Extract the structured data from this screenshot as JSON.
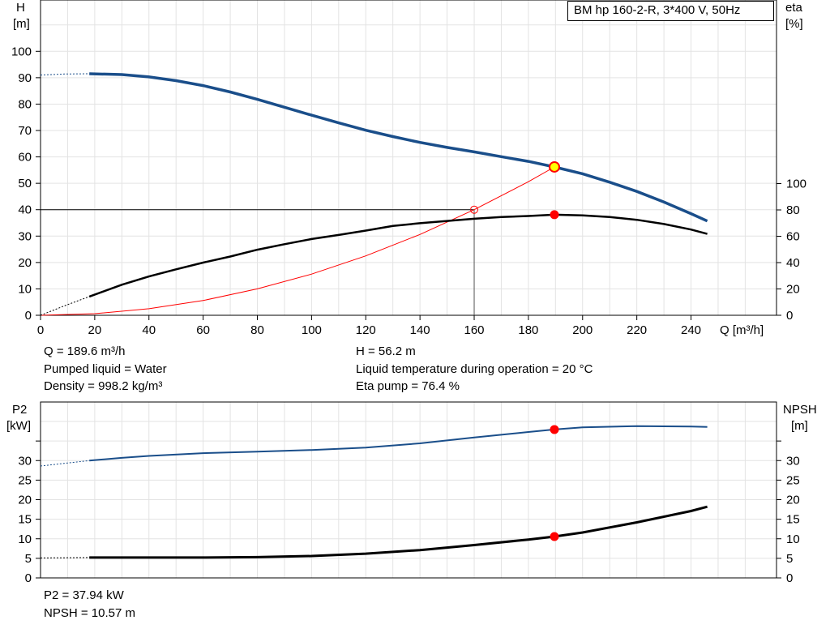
{
  "model_label": "BM hp 160-2-R, 3*400 V, 50Hz",
  "info": {
    "q": "Q = 189.6 m³/h",
    "h": "H = 56.2 m",
    "liquid": "Pumped liquid = Water",
    "temp": "Liquid temperature during operation = 20 °C",
    "density": "Density = 998.2 kg/m³",
    "eta": "Eta pump = 76.4 %",
    "p2": "P2 = 37.94 kW",
    "npsh": "NPSH = 10.57 m"
  },
  "colors": {
    "head_curve": "#1a4e8a",
    "eta_curve": "#000000",
    "system_curve": "#ff0000",
    "p2_curve": "#1a4e8a",
    "npsh_curve": "#000000",
    "duty_point": "#ff0000",
    "duty_point_head": "#ffff00"
  },
  "chart_data": [
    {
      "type": "line",
      "name": "pump-performance",
      "xlabel": "Q [m³/h]",
      "ylabel_left": [
        "H",
        "[m]"
      ],
      "ylabel_right": [
        "eta",
        "[%]"
      ],
      "xlim": [
        0,
        260
      ],
      "xticks": [
        0,
        20,
        40,
        60,
        80,
        100,
        120,
        140,
        160,
        180,
        200,
        220,
        240
      ],
      "ylim_left": [
        0,
        110
      ],
      "yticks_left": [
        0,
        10,
        20,
        30,
        40,
        50,
        60,
        70,
        80,
        90,
        100
      ],
      "ylim_right": [
        0,
        110
      ],
      "yticks_right": [
        0,
        20,
        40,
        60,
        80,
        100
      ],
      "grid": true,
      "series": [
        {
          "key": "head",
          "axis": "left",
          "x": [
            18,
            30,
            40,
            50,
            60,
            70,
            80,
            90,
            100,
            110,
            120,
            130,
            140,
            150,
            160,
            170,
            180,
            189.6,
            200,
            210,
            220,
            230,
            240,
            246
          ],
          "y": [
            91.5,
            91.2,
            90.3,
            88.9,
            87.0,
            84.6,
            81.8,
            78.8,
            75.8,
            72.9,
            70.1,
            67.7,
            65.5,
            63.6,
            61.9,
            60.1,
            58.3,
            56.2,
            53.6,
            50.4,
            46.9,
            42.9,
            38.5,
            35.7
          ],
          "extrapolated": {
            "x": [
              0,
              9,
              18
            ],
            "y": [
              91.0,
              91.4,
              91.5
            ]
          }
        },
        {
          "key": "eta",
          "axis": "right",
          "x": [
            18,
            30,
            40,
            50,
            60,
            70,
            80,
            90,
            100,
            110,
            120,
            130,
            140,
            150,
            160,
            170,
            180,
            189.6,
            200,
            210,
            220,
            230,
            240,
            246
          ],
          "y": [
            14.2,
            23.2,
            29.5,
            34.9,
            40.0,
            44.6,
            49.8,
            54.0,
            57.9,
            61.0,
            64.3,
            67.8,
            69.9,
            71.6,
            73.3,
            74.6,
            75.4,
            76.4,
            75.9,
            74.6,
            72.5,
            69.3,
            65.1,
            61.8
          ],
          "extrapolated": {
            "x": [
              0,
              9,
              18
            ],
            "y": [
              0,
              7.3,
              14.2
            ]
          }
        },
        {
          "key": "system",
          "axis": "left",
          "x": [
            0,
            20,
            40,
            60,
            80,
            100,
            120,
            140,
            160,
            180,
            189.6
          ],
          "y": [
            0,
            0.6,
            2.5,
            5.6,
            10.0,
            15.6,
            22.5,
            30.6,
            40.0,
            50.6,
            56.2
          ]
        }
      ],
      "markers": [
        {
          "key": "duty-head",
          "x": 189.6,
          "y": 56.2,
          "axis": "left"
        },
        {
          "key": "duty-eta",
          "x": 189.6,
          "y": 76.4,
          "axis": "right"
        },
        {
          "key": "ref-point",
          "x": 160,
          "y": 40,
          "axis": "left"
        }
      ]
    },
    {
      "type": "line",
      "name": "power-npsh",
      "ylabel_left": [
        "P2",
        "[kW]"
      ],
      "ylabel_right": [
        "NPSH",
        "[m]"
      ],
      "xlim": [
        0,
        260
      ],
      "ylim_left": [
        0,
        40
      ],
      "yticks_left": [
        0,
        5,
        10,
        15,
        20,
        25,
        30
      ],
      "ylim_right": [
        0,
        40
      ],
      "yticks_right": [
        0,
        5,
        10,
        15,
        20,
        25,
        30
      ],
      "grid": true,
      "series": [
        {
          "key": "p2",
          "axis": "left",
          "x": [
            18,
            30,
            40,
            60,
            80,
            100,
            120,
            140,
            160,
            180,
            189.6,
            200,
            220,
            240,
            246
          ],
          "y": [
            30.0,
            30.7,
            31.2,
            31.9,
            32.3,
            32.7,
            33.3,
            34.4,
            35.9,
            37.3,
            37.94,
            38.5,
            38.8,
            38.7,
            38.6
          ],
          "extrapolated": {
            "x": [
              0,
              9,
              18
            ],
            "y": [
              28.6,
              29.3,
              30.0
            ]
          }
        },
        {
          "key": "npsh",
          "axis": "right",
          "x": [
            18,
            40,
            60,
            80,
            100,
            120,
            140,
            160,
            180,
            189.6,
            200,
            220,
            240,
            246
          ],
          "y": [
            5.2,
            5.2,
            5.2,
            5.3,
            5.6,
            6.2,
            7.1,
            8.4,
            9.8,
            10.57,
            11.6,
            14.2,
            17.1,
            18.2
          ],
          "extrapolated": {
            "x": [
              0,
              9,
              18
            ],
            "y": [
              5.1,
              5.15,
              5.2
            ]
          }
        }
      ],
      "markers": [
        {
          "key": "duty-p2",
          "x": 189.6,
          "y": 37.94,
          "axis": "left"
        },
        {
          "key": "duty-npsh",
          "x": 189.6,
          "y": 10.57,
          "axis": "right"
        }
      ]
    }
  ]
}
